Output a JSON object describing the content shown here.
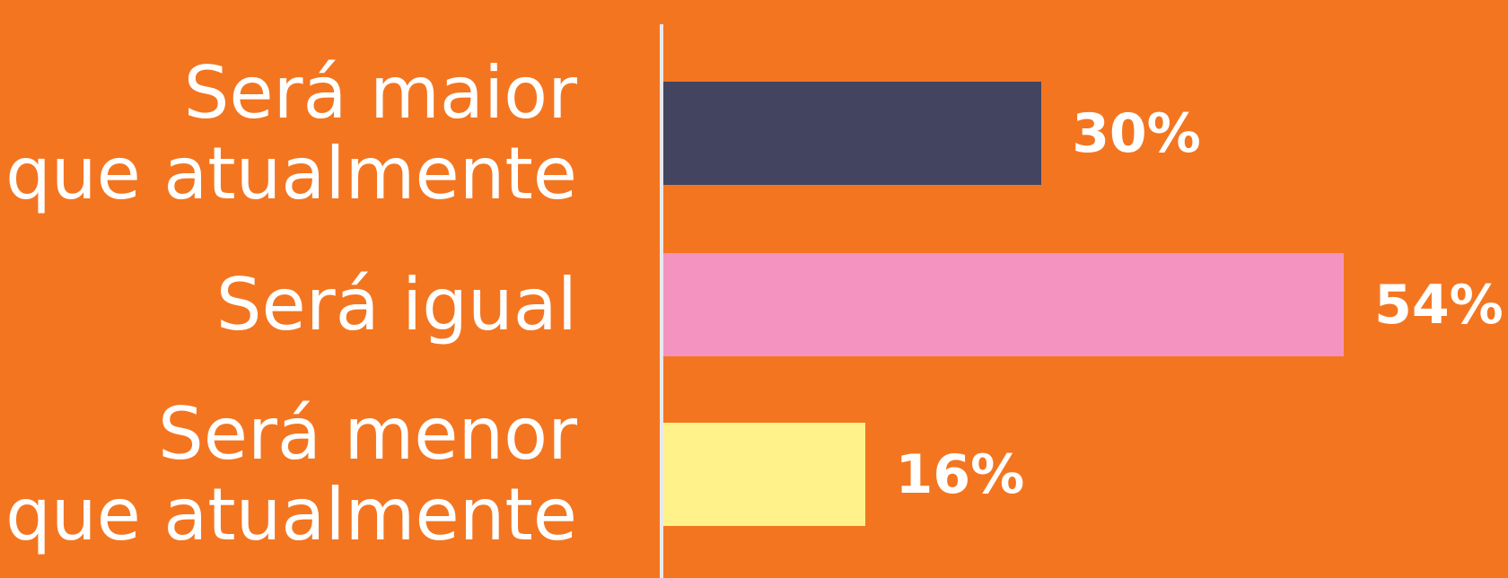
{
  "chart_data": {
    "type": "bar",
    "orientation": "horizontal",
    "categories": [
      "Será maior\nque atualmente",
      "Será igual",
      "Será menor\nque atualmente"
    ],
    "series": [
      {
        "colors": [
          "#434560",
          "#F593C0",
          "#FFF28A"
        ],
        "values": [
          30,
          54,
          16
        ],
        "value_labels": [
          "30%",
          "54%",
          "16%"
        ]
      }
    ]
  }
}
